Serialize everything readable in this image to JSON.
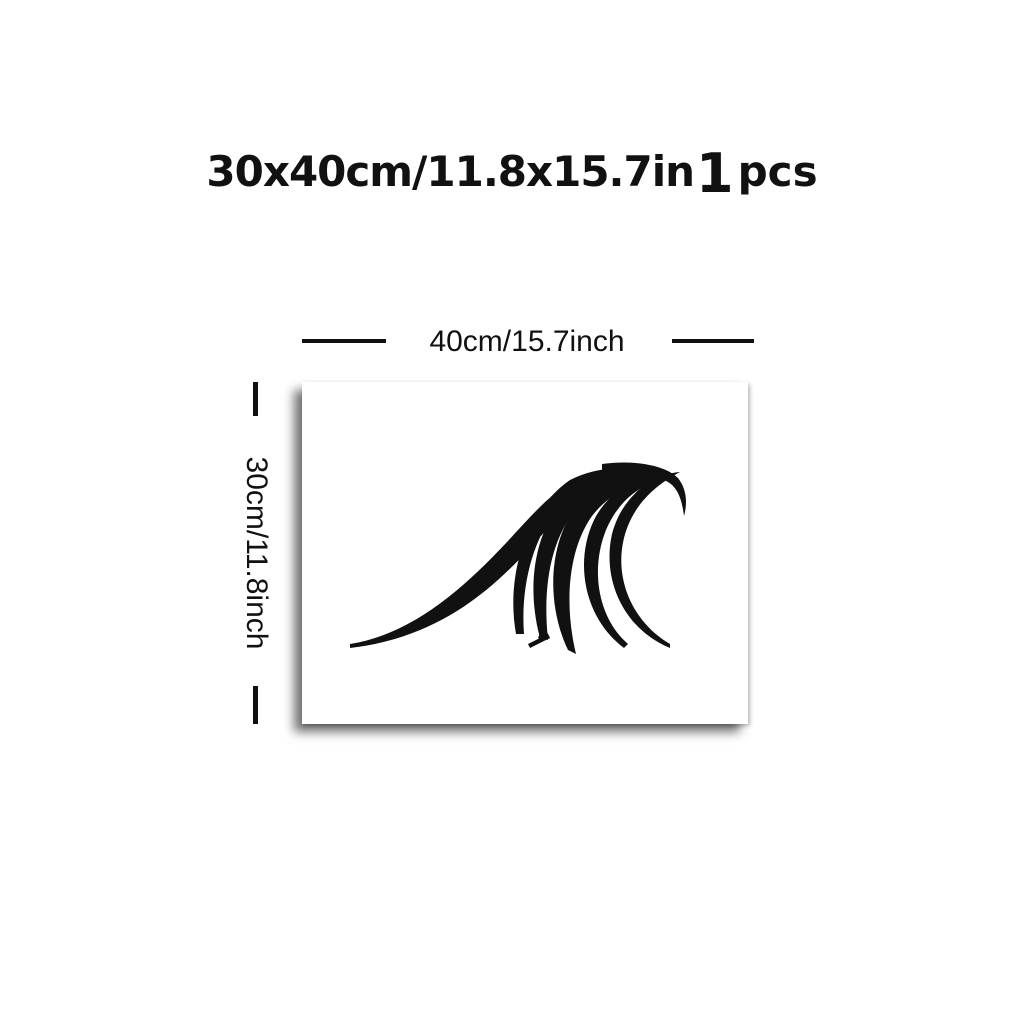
{
  "header": {
    "size_text": "30x40cm/11.8x15.7in",
    "quantity": "1",
    "quantity_unit": "pcs"
  },
  "dimensions": {
    "width_label": "40cm/15.7inch",
    "height_label": "30cm/11.8inch"
  },
  "artwork": {
    "subject": "wave-line-art",
    "ink_color": "#111111",
    "background_color": "#ffffff"
  }
}
